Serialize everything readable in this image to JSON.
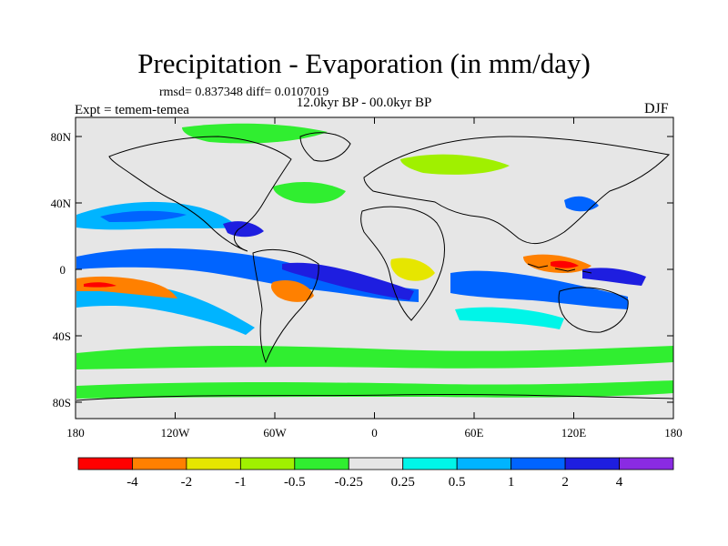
{
  "header": {
    "title": "Precipitation - Evaporation (in mm/day)",
    "stats": "rmsd= 0.837348 diff= 0.0107019",
    "period": "12.0kyr BP - 00.0kyr BP",
    "experiment": "Expt = temem-temea",
    "season": "DJF"
  },
  "axes": {
    "y_ticks": [
      "80N",
      "40N",
      "0",
      "40S",
      "80S"
    ],
    "x_ticks": [
      "180",
      "120W",
      "60W",
      "0",
      "60E",
      "120E",
      "180"
    ]
  },
  "colorbar": {
    "colors": [
      "#ff0000",
      "#ff8000",
      "#e6e600",
      "#a0f000",
      "#30ee30",
      "#e6e6e6",
      "#00f5e8",
      "#00b4ff",
      "#0064ff",
      "#1e1ee0",
      "#8a2be2"
    ],
    "labels": [
      "-4",
      "-2",
      "-1",
      "-0.5",
      "-0.25",
      "0.25",
      "0.5",
      "1",
      "2",
      "4"
    ]
  },
  "colors": {
    "land_background": "#e6e6e6",
    "coastline": "#000000"
  }
}
